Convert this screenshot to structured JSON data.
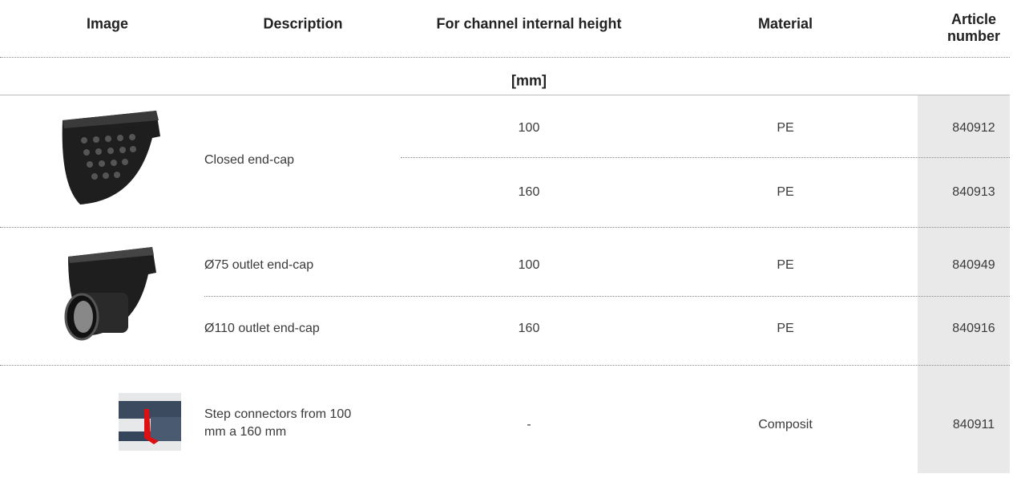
{
  "table": {
    "header": [
      "Image",
      "Description",
      "For channel internal height",
      "Material",
      "Article number"
    ],
    "unit": "[mm]",
    "groups": [
      {
        "items": [
          {
            "description": "Closed end-cap",
            "rows": [
              {
                "height": "100",
                "material": "PE",
                "article": "840912"
              },
              {
                "height": "160",
                "material": "PE",
                "article": "840913"
              }
            ]
          }
        ]
      },
      {
        "items": [
          {
            "description": "Ø75 outlet end-cap",
            "rows": [
              {
                "height": "100",
                "material": "PE",
                "article": "840949"
              }
            ]
          },
          {
            "description": "Ø110 outlet end-cap",
            "rows": [
              {
                "height": "160",
                "material": "PE",
                "article": "840916"
              }
            ]
          }
        ]
      },
      {
        "items": [
          {
            "description": "Step connectors from 100 mm a 160 mm",
            "rows": [
              {
                "height": "-",
                "material": "Composit",
                "article": "840911"
              }
            ]
          }
        ]
      }
    ]
  }
}
